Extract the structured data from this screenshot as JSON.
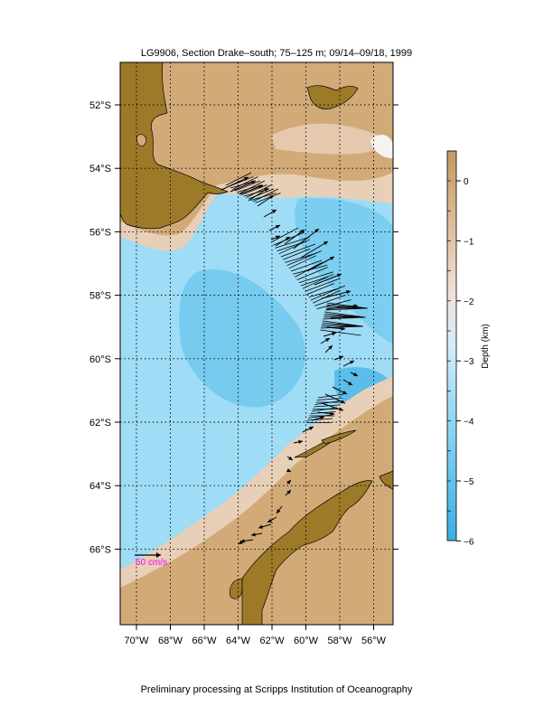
{
  "title": "LG9906, Section Drake–south; 75–125 m; 09/14–09/18, 1999",
  "footer": "Preliminary processing at Scripps Institution of Oceanography",
  "map": {
    "lon_ticks": [
      {
        "value": -70,
        "label": "70°W"
      },
      {
        "value": -68,
        "label": "68°W"
      },
      {
        "value": -66,
        "label": "66°W"
      },
      {
        "value": -64,
        "label": "64°W"
      },
      {
        "value": -62,
        "label": "62°W"
      },
      {
        "value": -60,
        "label": "60°W"
      },
      {
        "value": -58,
        "label": "58°W"
      },
      {
        "value": -56,
        "label": "56°W"
      }
    ],
    "lat_ticks": [
      {
        "value": -52,
        "label": "52°S"
      },
      {
        "value": -54,
        "label": "54°S"
      },
      {
        "value": -56,
        "label": "56°S"
      },
      {
        "value": -58,
        "label": "58°S"
      },
      {
        "value": -60,
        "label": "60°S"
      },
      {
        "value": -62,
        "label": "62°S"
      },
      {
        "value": -64,
        "label": "64°S"
      },
      {
        "value": -66,
        "label": "66°S"
      }
    ],
    "scale_label": "50 cm/s",
    "colors": {
      "land": "#9c7a28",
      "shelf": "#d2aa78",
      "slope": "#e8cfb8",
      "deep": "#9fdcf5",
      "abyss": "#6cc7ee",
      "scale_label": "#ff00ff"
    }
  },
  "colorbar": {
    "label": "Depth (km)",
    "ticks": [
      {
        "value": 0,
        "label": "0"
      },
      {
        "value": -1,
        "label": "−1"
      },
      {
        "value": -2,
        "label": "−2"
      },
      {
        "value": -3,
        "label": "−3"
      },
      {
        "value": -4,
        "label": "−4"
      },
      {
        "value": -5,
        "label": "−5"
      },
      {
        "value": -6,
        "label": "−6"
      }
    ]
  }
}
